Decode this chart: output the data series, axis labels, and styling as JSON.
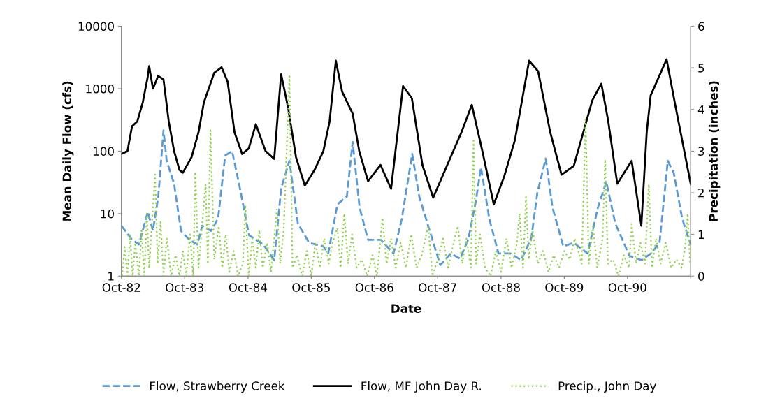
{
  "chart_data": {
    "type": "line",
    "xlabel": "Date",
    "ylabel": "Mean Daily Flow (cfs)",
    "y2label": "Precipitation (inches)",
    "log": "y",
    "ylim": [
      1,
      10000
    ],
    "yticks": [
      1,
      10,
      100,
      1000,
      10000
    ],
    "y2lim": [
      0,
      6
    ],
    "y2ticks": [
      0,
      1,
      2,
      3,
      4,
      5,
      6
    ],
    "xlim": [
      "1982-10-01",
      "1991-10-01"
    ],
    "xticks": [
      {
        "value": "1982-10-01",
        "label": "Oct-82"
      },
      {
        "value": "1983-10-01",
        "label": "Oct-83"
      },
      {
        "value": "1984-10-01",
        "label": "Oct-84"
      },
      {
        "value": "1985-10-01",
        "label": "Oct-85"
      },
      {
        "value": "1986-10-01",
        "label": "Oct-86"
      },
      {
        "value": "1987-10-01",
        "label": "Oct-87"
      },
      {
        "value": "1988-10-01",
        "label": "Oct-88"
      },
      {
        "value": "1989-10-01",
        "label": "Oct-89"
      },
      {
        "value": "1990-10-01",
        "label": "Oct-90"
      },
      {
        "value": "1991-10-01",
        "label": null
      }
    ],
    "grid": false,
    "legend": "bottom",
    "marker": "none",
    "series": [
      {
        "name": "Flow, Strawberry Creek",
        "color": "#5b9bd5",
        "line_style": "dashed",
        "x": [
          "1982-10-01",
          "1982-12-01",
          "1983-01-10",
          "1983-03-02",
          "1983-04-01",
          "1983-05-02",
          "1983-06-01",
          "1983-06-19",
          "1983-08-01",
          "1983-09-10",
          "1983-10-28",
          "1983-12-13",
          "1984-01-10",
          "1984-03-01",
          "1984-04-11",
          "1984-05-22",
          "1984-07-01",
          "1984-08-10",
          "1984-10-07",
          "1984-12-28",
          "1985-03-01",
          "1985-04-10",
          "1985-05-28",
          "1985-07-16",
          "1985-09-19",
          "1985-12-10",
          "1986-01-07",
          "1986-03-01",
          "1986-04-25",
          "1986-05-28",
          "1986-07-07",
          "1986-08-25",
          "1986-11-07",
          "1987-01-19",
          "1987-03-07",
          "1987-05-07",
          "1987-06-16",
          "1987-08-16",
          "1987-10-16",
          "1987-12-16",
          "1988-02-07",
          "1988-03-25",
          "1988-05-07",
          "1988-06-07",
          "1988-07-25",
          "1988-09-16",
          "1988-11-25",
          "1989-01-25",
          "1989-03-25",
          "1989-04-28",
          "1989-06-16",
          "1989-07-25",
          "1989-09-25",
          "1989-11-25",
          "1990-02-13",
          "1990-04-13",
          "1990-06-01",
          "1990-07-23",
          "1990-10-13",
          "1990-12-22",
          "1991-02-13",
          "1991-04-04",
          "1991-05-22",
          "1991-06-25",
          "1991-08-13",
          "1991-10-01"
        ],
        "values": [
          6.4,
          3.8,
          3.2,
          10.7,
          5.3,
          19,
          215,
          70,
          30,
          5.3,
          3.8,
          3.2,
          6.4,
          5.3,
          8.3,
          85,
          100,
          30,
          4.5,
          3.2,
          1.8,
          25,
          70,
          6.9,
          3.4,
          3.0,
          2.3,
          14,
          19,
          140,
          12.5,
          3.8,
          3.8,
          2.3,
          8,
          90,
          19,
          5.3,
          1.5,
          2.3,
          1.9,
          3.8,
          15,
          55,
          8.3,
          2.3,
          2.3,
          1.8,
          4.1,
          21,
          76,
          12.5,
          3,
          3.4,
          2.3,
          12.5,
          32,
          6.9,
          2.1,
          1.8,
          2.3,
          3.4,
          70,
          45,
          8.3,
          3.2
        ]
      },
      {
        "name": "Flow, MF John Day R.",
        "color": "#000000",
        "line_style": "solid",
        "x": [
          "1982-10-01",
          "1982-11-05",
          "1982-12-01",
          "1983-01-01",
          "1983-02-01",
          "1983-03-01",
          "1983-03-10",
          "1983-04-01",
          "1983-05-01",
          "1983-06-01",
          "1983-07-01",
          "1983-08-01",
          "1983-09-01",
          "1983-09-20",
          "1983-11-10",
          "1983-12-20",
          "1984-01-20",
          "1984-03-20",
          "1984-05-01",
          "1984-06-05",
          "1984-07-15",
          "1984-08-28",
          "1984-10-05",
          "1984-11-15",
          "1985-01-10",
          "1985-03-01",
          "1985-04-10",
          "1985-05-20",
          "1985-07-05",
          "1985-08-25",
          "1985-10-20",
          "1985-12-10",
          "1986-01-15",
          "1986-02-20",
          "1986-03-28",
          "1986-05-28",
          "1986-07-05",
          "1986-08-25",
          "1986-11-05",
          "1987-01-05",
          "1987-03-15",
          "1987-05-05",
          "1987-07-05",
          "1987-09-05",
          "1987-12-15",
          "1988-02-15",
          "1988-04-15",
          "1988-06-15",
          "1988-08-20",
          "1988-10-20",
          "1988-12-20",
          "1989-03-12",
          "1989-05-03",
          "1989-07-12",
          "1989-09-15",
          "1989-11-25",
          "1990-03-12",
          "1990-05-03",
          "1990-06-12",
          "1990-08-03",
          "1990-10-25",
          "1990-12-20",
          "1991-01-20",
          "1991-02-12",
          "1991-05-15",
          "1991-07-01",
          "1991-10-01"
        ],
        "values": [
          90,
          100,
          250,
          300,
          600,
          1500,
          2300,
          1000,
          1600,
          1400,
          300,
          100,
          50,
          45,
          80,
          200,
          600,
          1800,
          2200,
          1300,
          200,
          90,
          110,
          270,
          100,
          75,
          1700,
          500,
          80,
          28,
          50,
          100,
          300,
          2800,
          900,
          400,
          100,
          33,
          60,
          25,
          1100,
          700,
          60,
          18,
          80,
          200,
          550,
          100,
          14,
          40,
          150,
          2800,
          1900,
          200,
          42,
          58,
          650,
          1200,
          300,
          30,
          70,
          6.4,
          200,
          780,
          2950,
          600,
          30
        ]
      },
      {
        "name": "Precip., John Day",
        "color": "#92d050",
        "line_style": "dotted",
        "axis": "y2",
        "x": [
          "1982-10-05",
          "1982-10-20",
          "1982-11-05",
          "1982-11-20",
          "1982-12-05",
          "1982-12-20",
          "1983-01-10",
          "1983-01-25",
          "1983-02-10",
          "1983-02-25",
          "1983-03-10",
          "1983-04-13",
          "1983-04-28",
          "1983-05-15",
          "1983-06-01",
          "1983-06-20",
          "1983-07-15",
          "1983-08-10",
          "1983-09-01",
          "1983-09-20",
          "1983-10-10",
          "1983-11-01",
          "1983-11-20",
          "1983-12-01",
          "1983-12-20",
          "1984-01-30",
          "1984-02-12",
          "1984-02-27",
          "1984-03-20",
          "1984-04-15",
          "1984-05-05",
          "1984-05-25",
          "1984-06-15",
          "1984-07-10",
          "1984-08-05",
          "1984-09-01",
          "1984-09-16",
          "1984-10-05",
          "1984-10-25",
          "1984-11-15",
          "1984-12-05",
          "1984-12-25",
          "1985-01-20",
          "1985-02-10",
          "1985-03-01",
          "1985-03-16",
          "1985-04-05",
          "1985-04-25",
          "1985-05-28",
          "1985-06-15",
          "1985-07-10",
          "1985-08-10",
          "1985-09-05",
          "1985-10-01",
          "1985-10-25",
          "1985-11-20",
          "1985-12-15",
          "1986-01-10",
          "1986-02-01",
          "1986-03-01",
          "1986-03-20",
          "1986-04-10",
          "1986-05-01",
          "1986-05-25",
          "1986-06-20",
          "1986-07-20",
          "1986-08-20",
          "1986-09-20",
          "1986-10-15",
          "1986-11-01",
          "1986-11-16",
          "1986-12-10",
          "1987-01-05",
          "1987-02-01",
          "1987-03-01",
          "1987-04-01",
          "1987-05-01",
          "1987-06-01",
          "1987-07-01",
          "1987-08-07",
          "1987-09-01",
          "1987-10-01",
          "1987-11-01",
          "1987-12-01",
          "1988-01-01",
          "1988-01-25",
          "1988-02-20",
          "1988-03-15",
          "1988-04-10",
          "1988-04-25",
          "1988-05-10",
          "1988-06-01",
          "1988-07-01",
          "1988-08-01",
          "1988-09-01",
          "1988-10-01",
          "1988-11-01",
          "1988-12-01",
          "1989-01-01",
          "1989-01-16",
          "1989-02-05",
          "1989-02-22",
          "1989-03-10",
          "1989-04-01",
          "1989-05-01",
          "1989-06-01",
          "1989-07-01",
          "1989-08-01",
          "1989-09-01",
          "1989-10-01",
          "1989-11-01",
          "1989-12-01",
          "1990-01-10",
          "1990-02-01",
          "1990-02-20",
          "1990-03-15",
          "1990-04-10",
          "1990-05-10",
          "1990-05-25",
          "1990-06-10",
          "1990-07-10",
          "1990-08-10",
          "1990-09-10",
          "1990-10-10",
          "1990-10-25",
          "1990-11-20",
          "1990-12-15",
          "1991-01-10",
          "1991-02-01",
          "1991-02-20",
          "1991-03-15",
          "1991-04-10",
          "1991-05-10",
          "1991-06-10",
          "1991-07-10",
          "1991-08-10",
          "1991-08-30",
          "1991-09-13",
          "1991-09-28"
        ],
        "values": [
          0,
          0.7,
          0,
          1.0,
          0,
          0.8,
          0,
          1.1,
          0,
          1.5,
          0.2,
          2.44,
          0.3,
          1.3,
          0,
          0.9,
          0,
          0.5,
          0,
          0.6,
          0,
          1.0,
          0,
          2.5,
          0.2,
          2.2,
          0.3,
          3.5,
          0.4,
          1.2,
          0.2,
          1.0,
          0.1,
          0.6,
          0,
          0.3,
          1.7,
          0,
          0.9,
          0.2,
          1.1,
          0.2,
          0.8,
          0.1,
          0.9,
          1.6,
          0.3,
          1.1,
          4.8,
          0.2,
          0.5,
          0,
          0.6,
          0,
          0.8,
          0.2,
          0.9,
          0.3,
          0.8,
          1.15,
          0.2,
          1.5,
          0.3,
          1.0,
          0.2,
          0.4,
          0,
          0.5,
          0,
          0.7,
          1.4,
          0.3,
          0.9,
          0.2,
          0.8,
          0.2,
          1.0,
          0.2,
          0.5,
          1.2,
          0,
          0.4,
          0.9,
          0.2,
          0.8,
          1.2,
          0.3,
          0.9,
          0.2,
          3.3,
          0.3,
          1.0,
          0.2,
          0,
          0.6,
          0.1,
          0.9,
          0.2,
          0.8,
          1.5,
          0.2,
          1.9,
          0.4,
          1.1,
          0.3,
          0.6,
          0.1,
          0.5,
          0.2,
          0.6,
          0.4,
          0.9,
          0.3,
          3.8,
          0.3,
          1.2,
          0.2,
          0.9,
          2.8,
          0.3,
          0.4,
          0,
          0.5,
          0.2,
          1.25,
          0.3,
          0.8,
          0.3,
          2.2,
          0.2,
          0.9,
          0.3,
          0.8,
          0.2,
          0.4,
          0.2,
          0.7,
          1.5,
          0.3
        ]
      }
    ]
  }
}
